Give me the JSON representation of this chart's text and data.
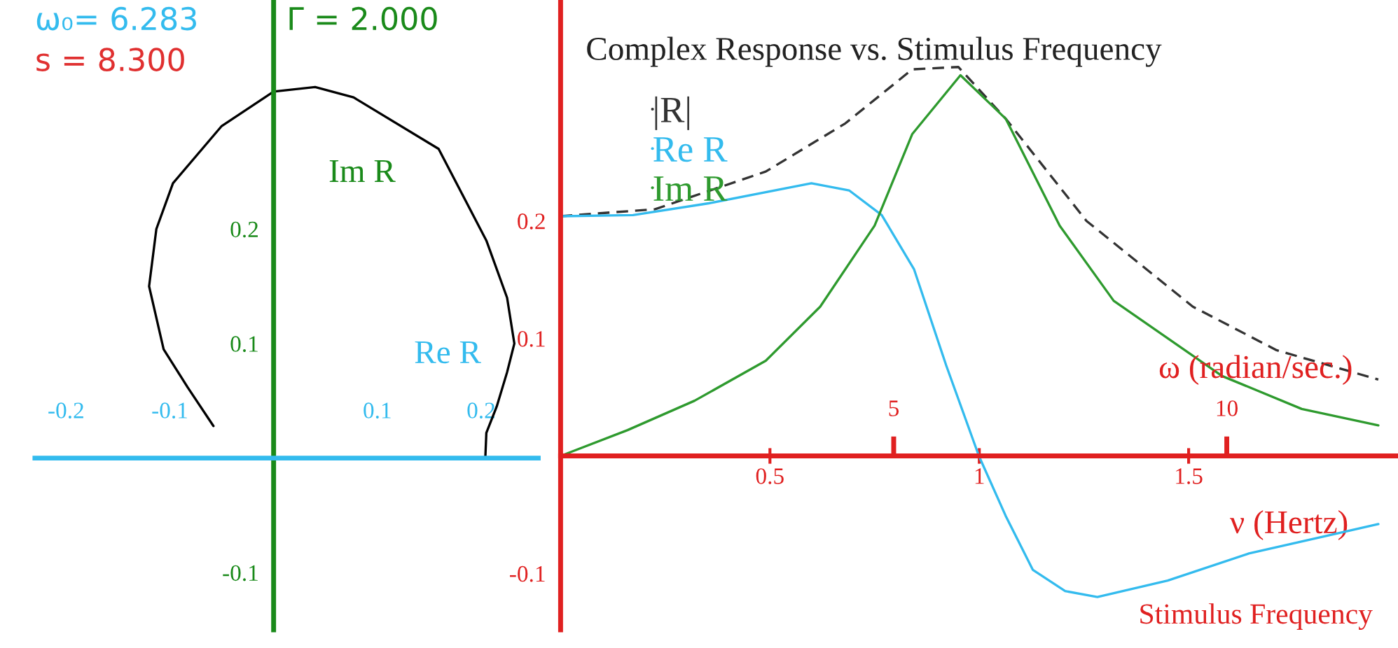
{
  "chart_data": [
    {
      "type": "line",
      "xlabel": "Re R",
      "ylabel": "Im R",
      "annotations": [
        "ω₀= 6.283",
        "Γ = 2.000",
        "s = 8.300"
      ],
      "series": [
        {
          "color": "#000000",
          "x": [
            0.204,
            0.205,
            0.215,
            0.225,
            0.232,
            0.225,
            0.205,
            0.159,
            0.077,
            0.04,
            0,
            -0.05,
            -0.097,
            -0.113,
            -0.12,
            -0.106,
            -0.083,
            -0.058
          ],
          "values": [
            0,
            0.022,
            0.045,
            0.075,
            0.1,
            0.14,
            0.19,
            0.27,
            0.315,
            0.324,
            0.32,
            0.29,
            0.24,
            0.2,
            0.15,
            0.095,
            0.062,
            0.028
          ]
        }
      ],
      "xlim": [
        -0.23,
        0.255
      ],
      "ylim": [
        -0.15,
        0.4
      ],
      "xticks": [
        -0.2,
        -0.1,
        0.1,
        0.2
      ],
      "yticks": [
        -0.1,
        0.1,
        0.2
      ],
      "grid": false,
      "legend": false
    },
    {
      "type": "line",
      "title": "Complex Response vs. Stimulus Frequency",
      "xlabel": "ν (Hertz)",
      "x2label": "ω (radian/sec.)",
      "annotations": [
        "Stimulus Frequency"
      ],
      "series": [
        {
          "name": "|R|",
          "color": "#333333",
          "line_style": "dashed",
          "x": [
            0,
            0.226,
            0.49,
            0.68,
            0.84,
            0.95,
            1.063,
            1.256,
            1.51,
            1.71,
            1.953
          ],
          "values": [
            0.204,
            0.21,
            0.242,
            0.283,
            0.329,
            0.331,
            0.287,
            0.2,
            0.127,
            0.09,
            0.065
          ]
        },
        {
          "name": "Re R",
          "color": "#33bbee",
          "x": [
            0,
            0.173,
            0.354,
            0.599,
            0.689,
            0.767,
            0.844,
            0.921,
            0.999,
            1.063,
            1.128,
            1.205,
            1.282,
            1.45,
            1.644,
            1.953
          ],
          "values": [
            0.204,
            0.205,
            0.215,
            0.232,
            0.226,
            0.205,
            0.159,
            0.077,
            0,
            -0.051,
            -0.097,
            -0.115,
            -0.12,
            -0.106,
            -0.083,
            -0.058
          ]
        },
        {
          "name": "Im R",
          "color": "#2e9a2e",
          "x": [
            0,
            0.16,
            0.32,
            0.49,
            0.62,
            0.75,
            0.84,
            0.955,
            1.063,
            1.192,
            1.321,
            1.58,
            1.77,
            1.953
          ],
          "values": [
            0,
            0.022,
            0.047,
            0.081,
            0.127,
            0.196,
            0.274,
            0.324,
            0.287,
            0.196,
            0.132,
            0.068,
            0.04,
            0.026
          ]
        }
      ],
      "xlim": [
        0,
        2.0
      ],
      "x2lim": [
        0,
        12.57
      ],
      "ylim": [
        -0.148,
        0.388
      ],
      "xticks": [
        0.5,
        1,
        1.5
      ],
      "x2ticks": [
        5,
        10
      ],
      "yticks": [
        -0.1,
        0.1,
        0.2
      ],
      "grid": false,
      "legend": "top left"
    }
  ]
}
